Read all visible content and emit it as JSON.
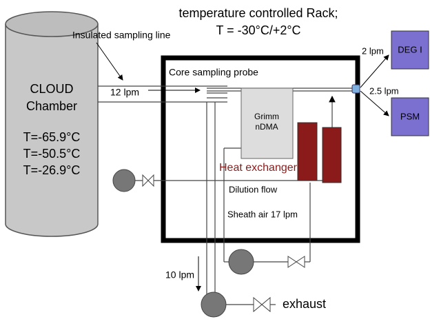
{
  "title": {
    "line1": "temperature controlled Rack;",
    "line2": "T = -30°C/+2°C"
  },
  "chamber": {
    "name": [
      "CLOUD",
      "Chamber"
    ],
    "temperatures": [
      "T=-65.9°C",
      "T=-50.5°C",
      "T=-26.9°C"
    ]
  },
  "labels": {
    "insulated_line": "Insulated sampling line",
    "sample_flow": "12 lpm",
    "probe": "Core sampling probe",
    "heat_exchanger": "Heat exchanger",
    "dilution": "Dilution flow",
    "sheath": "Sheath air 17 lpm",
    "flow_deg": "2 lpm",
    "flow_psm": "2.5 lpm",
    "exhaust_flow": "10 lpm",
    "exhaust": "exhaust"
  },
  "instruments": {
    "dma": [
      "Grimm",
      "nDMA"
    ],
    "deg": "DEG I",
    "psm": "PSM"
  }
}
